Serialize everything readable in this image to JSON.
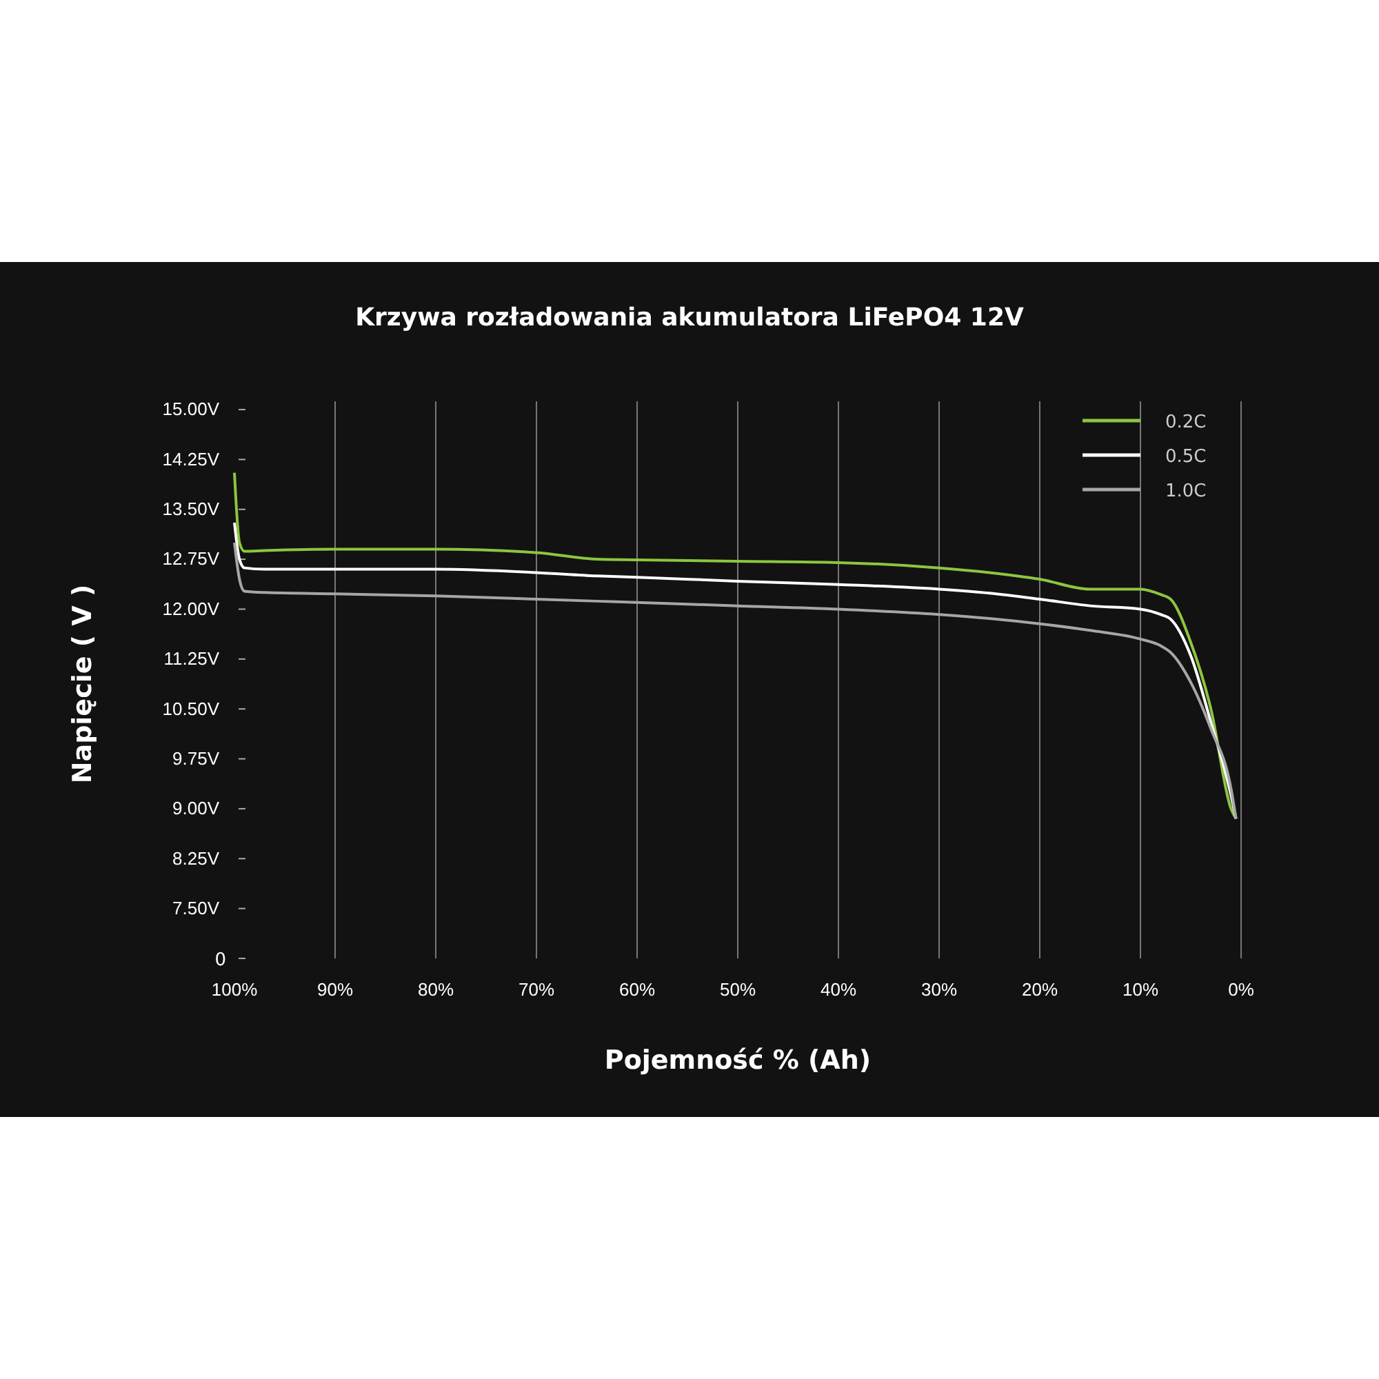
{
  "chart_data": {
    "type": "line",
    "title": "Krzywa rozładowania akumulatora LiFePO4 12V",
    "xlabel": "Pojemność % (Ah)",
    "ylabel": "Napięcie ( V )",
    "x": [
      100,
      99.5,
      99,
      97,
      90,
      80,
      70,
      64,
      60,
      50,
      40,
      30,
      25,
      20,
      15,
      10,
      8,
      7,
      5,
      3,
      1,
      0.5
    ],
    "series": [
      {
        "name": "0.2C",
        "color": "#8cc63f",
        "values": [
          14.05,
          13.0,
          12.87,
          12.88,
          12.9,
          12.9,
          12.85,
          12.75,
          12.74,
          12.72,
          12.7,
          12.62,
          12.55,
          12.45,
          12.3,
          12.3,
          12.22,
          12.15,
          11.5,
          10.5,
          9.0,
          8.85
        ]
      },
      {
        "name": "0.5C",
        "color": "#ffffff",
        "values": [
          13.3,
          12.75,
          12.62,
          12.6,
          12.6,
          12.6,
          12.55,
          12.5,
          12.48,
          12.42,
          12.37,
          12.3,
          12.24,
          12.15,
          12.05,
          12.0,
          11.92,
          11.85,
          11.3,
          10.3,
          9.2,
          8.85
        ]
      },
      {
        "name": "1.0C",
        "color": "#a6a6a6",
        "values": [
          13.0,
          12.45,
          12.27,
          12.25,
          12.23,
          12.2,
          12.15,
          12.12,
          12.1,
          12.05,
          12.0,
          11.92,
          11.86,
          11.78,
          11.68,
          11.55,
          11.45,
          11.35,
          10.9,
          10.2,
          9.3,
          8.85
        ]
      }
    ],
    "xlim": [
      100,
      0
    ],
    "xticks": [
      {
        "value": 100,
        "label": "100%"
      },
      {
        "value": 90,
        "label": "90%"
      },
      {
        "value": 80,
        "label": "80%"
      },
      {
        "value": 70,
        "label": "70%"
      },
      {
        "value": 60,
        "label": "60%"
      },
      {
        "value": 50,
        "label": "50%"
      },
      {
        "value": 40,
        "label": "40%"
      },
      {
        "value": 30,
        "label": "30%"
      },
      {
        "value": 20,
        "label": "20%"
      },
      {
        "value": 10,
        "label": "10%"
      },
      {
        "value": 0,
        "label": "0%"
      }
    ],
    "ylim": [
      6.75,
      15
    ],
    "yticks": [
      {
        "value": 6.75,
        "label": null
      },
      {
        "value": 7.5,
        "label": "7.50V"
      },
      {
        "value": 8.25,
        "label": "8.25V"
      },
      {
        "value": 9,
        "label": "9.00V"
      },
      {
        "value": 9.75,
        "label": "9.75V"
      },
      {
        "value": 10.5,
        "label": "10.50V"
      },
      {
        "value": 11.25,
        "label": "11.25V"
      },
      {
        "value": 12,
        "label": "12.00V"
      },
      {
        "value": 12.75,
        "label": "12.75V"
      },
      {
        "value": 13.5,
        "label": "13.50V"
      },
      {
        "value": 14.25,
        "label": "14.25V"
      },
      {
        "value": 15,
        "label": "15.00V"
      }
    ],
    "annotations": [
      "0"
    ],
    "grid": "x",
    "legend": "top right",
    "marker": "none",
    "line_style": "solid"
  }
}
